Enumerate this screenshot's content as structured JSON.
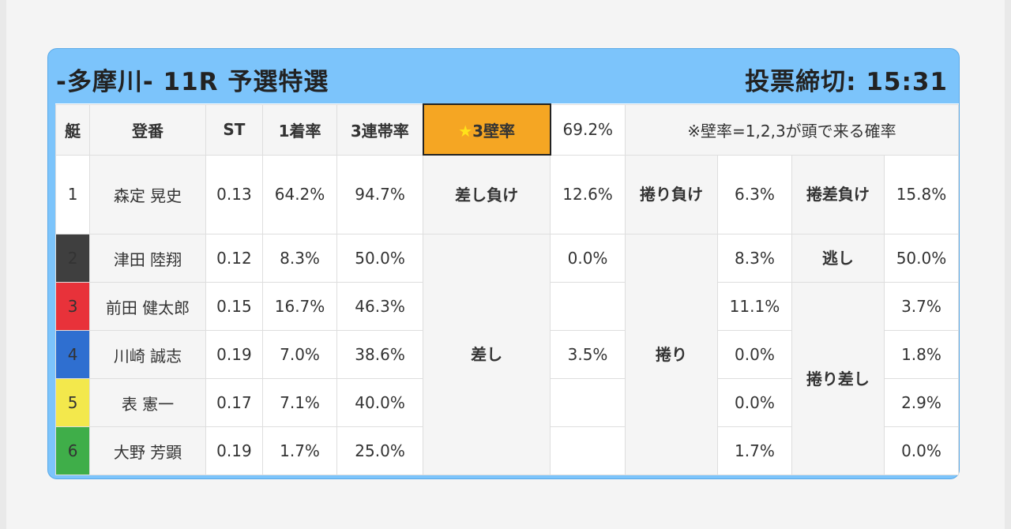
{
  "header": {
    "title": "-多摩川- 11R 予選特選",
    "deadline": "投票締切: 15:31"
  },
  "columns": {
    "boat": "艇",
    "racer": "登番",
    "st": "ST",
    "first_rate": "1着率",
    "top3_rate": "3連帯率",
    "wall_star": "★",
    "wall_label": "3壁率",
    "wall_value": "69.2%",
    "wall_note": "※壁率=1,2,3が頭で来る確率"
  },
  "labels": {
    "sashi_make": "差し負け",
    "makuri_make": "捲り負け",
    "makurizashi_make": "捲差負け",
    "nige": "逃し",
    "sashi": "差し",
    "makuri": "捲り",
    "makurizashi": "捲り差し"
  },
  "rows": [
    {
      "boat": "1",
      "name": "森定 晃史",
      "st": "0.13",
      "first": "64.2%",
      "top3": "94.7%",
      "a": "12.6%",
      "b": "6.3%",
      "c": "15.8%",
      "color": "#ffffff"
    },
    {
      "boat": "2",
      "name": "津田 陸翔",
      "st": "0.12",
      "first": "8.3%",
      "top3": "50.0%",
      "a": "0.0%",
      "b": "8.3%",
      "c": "50.0%",
      "color": "#3f3f3f"
    },
    {
      "boat": "3",
      "name": "前田 健太郎",
      "st": "0.15",
      "first": "16.7%",
      "top3": "46.3%",
      "a": "",
      "b": "11.1%",
      "c": "3.7%",
      "color": "#e8323a"
    },
    {
      "boat": "4",
      "name": "川崎 誠志",
      "st": "0.19",
      "first": "7.0%",
      "top3": "38.6%",
      "a": "3.5%",
      "b": "0.0%",
      "c": "1.8%",
      "color": "#2f6fd0"
    },
    {
      "boat": "5",
      "name": "表 憲一",
      "st": "0.17",
      "first": "7.1%",
      "top3": "40.0%",
      "a": "",
      "b": "0.0%",
      "c": "2.9%",
      "color": "#f3e84c"
    },
    {
      "boat": "6",
      "name": "大野 芳顕",
      "st": "0.19",
      "first": "1.7%",
      "top3": "25.0%",
      "a": "",
      "b": "1.7%",
      "c": "0.0%",
      "color": "#3fae49"
    }
  ]
}
